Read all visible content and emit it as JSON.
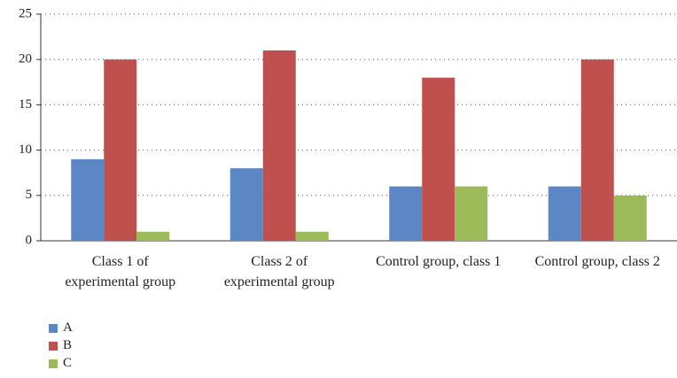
{
  "chart_data": {
    "type": "bar",
    "categories": [
      "Class 1 of experimental group",
      "Class 2 of experimental group",
      "Control group, class 1",
      "Control group, class 2"
    ],
    "series": [
      {
        "name": "A",
        "color": "#5b87c5",
        "values": [
          9,
          8,
          6,
          6
        ]
      },
      {
        "name": "B",
        "color": "#c0504d",
        "values": [
          20,
          21,
          18,
          20
        ]
      },
      {
        "name": "C",
        "color": "#9bbb59",
        "values": [
          1,
          1,
          6,
          5
        ]
      }
    ],
    "ylim": [
      0,
      25
    ],
    "yticks": [
      0,
      5,
      10,
      15,
      20,
      25
    ],
    "grid": true,
    "legend": "bottom-left"
  }
}
